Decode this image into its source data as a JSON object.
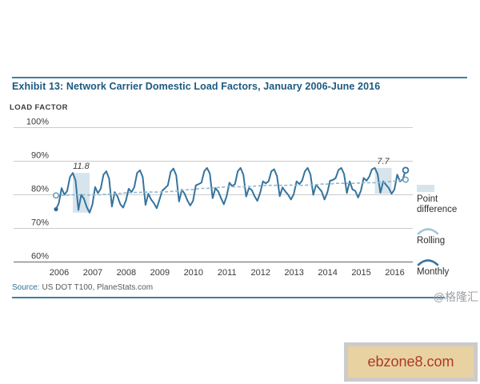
{
  "title": "Exhibit 13: Network Carrier Domestic Load Factors, January 2006-June 2016",
  "axis_title": "LOAD FACTOR",
  "source": {
    "label": "Source:",
    "text": "US DOT T100, PlaneStats.com"
  },
  "watermark": "@格隆汇",
  "footer_badge": "ebzone8.com",
  "legend": {
    "items": [
      {
        "label": "Point difference",
        "type": "swatch"
      },
      {
        "label": "Rolling",
        "type": "arc-light"
      },
      {
        "label": "Monthly",
        "type": "arc-dark"
      }
    ]
  },
  "colors": {
    "title_blue": "#1b5a80",
    "rule_blue": "#41809e",
    "monthly_line": "#35749e",
    "rolling_line": "#8fb8cf",
    "band_fill": "#d7e4ec",
    "gridline": "#cbcbcb",
    "axis_line": "#8a8a8a",
    "tick_text": "#3a3a3a",
    "annotation_text": "#3f3f3f",
    "badge_bg": "#e8d2a2",
    "badge_text": "#ad3a2a"
  },
  "chart_data": {
    "type": "line",
    "title": "Network Carrier Domestic Load Factors, January 2006-June 2016",
    "ylabel": "LOAD FACTOR",
    "ylim": [
      60,
      100
    ],
    "grid": true,
    "legend_position": "right",
    "ytick_values": [
      100,
      90,
      80,
      70,
      60
    ],
    "ytick_labels": [
      "100%",
      "90%",
      "80%",
      "70%",
      "60%"
    ],
    "x_tick_labels": [
      "2006",
      "2007",
      "2008",
      "2009",
      "2010",
      "2011",
      "2012",
      "2013",
      "2014",
      "2015",
      "2016"
    ],
    "x_start": "2006-01",
    "x_end": "2016-06",
    "series": [
      {
        "name": "Monthly",
        "values": [
          75.7,
          77.5,
          82.0,
          80.0,
          81.2,
          85.3,
          86.5,
          84.2,
          75.5,
          80.0,
          78.8,
          76.3,
          74.7,
          77.0,
          82.3,
          80.5,
          81.8,
          86.0,
          87.0,
          84.8,
          76.5,
          80.8,
          79.5,
          77.2,
          76.2,
          78.3,
          81.8,
          80.8,
          82.3,
          86.5,
          87.3,
          85.3,
          77.0,
          80.3,
          78.6,
          77.5,
          76.0,
          78.6,
          81.2,
          82.0,
          82.8,
          86.8,
          87.8,
          85.8,
          78.0,
          81.5,
          80.3,
          78.3,
          76.8,
          78.2,
          82.8,
          83.2,
          83.6,
          87.0,
          88.0,
          86.3,
          79.0,
          82.0,
          81.0,
          79.0,
          77.2,
          79.6,
          83.6,
          82.6,
          83.2,
          87.0,
          88.0,
          86.0,
          79.5,
          82.0,
          81.4,
          79.6,
          78.2,
          80.6,
          84.0,
          83.4,
          84.0,
          87.0,
          87.6,
          85.6,
          79.6,
          82.2,
          81.0,
          80.0,
          78.6,
          80.2,
          84.0,
          83.2,
          84.2,
          87.0,
          88.0,
          86.0,
          80.0,
          83.0,
          82.0,
          81.0,
          78.6,
          80.6,
          84.2,
          84.4,
          85.0,
          87.4,
          88.0,
          86.2,
          80.5,
          84.0,
          81.6,
          81.2,
          79.2,
          81.2,
          85.0,
          84.2,
          85.4,
          87.6,
          88.0,
          86.2,
          80.6,
          84.0,
          83.0,
          82.0,
          80.3,
          81.6,
          86.0,
          84.0,
          84.6,
          87.3
        ]
      },
      {
        "name": "Rolling",
        "values": [
          79.8,
          79.8,
          79.9,
          79.9,
          79.9,
          80.0,
          80.0,
          80.0,
          80.0,
          80.0,
          80.0,
          80.0,
          79.9,
          79.9,
          79.9,
          80.0,
          80.0,
          80.1,
          80.1,
          80.2,
          80.2,
          80.3,
          80.3,
          80.4,
          80.5,
          80.6,
          80.6,
          80.6,
          80.7,
          80.7,
          80.7,
          80.8,
          80.8,
          80.8,
          80.8,
          80.8,
          80.8,
          80.8,
          80.8,
          80.9,
          80.9,
          81.0,
          81.0,
          81.1,
          81.2,
          81.3,
          81.4,
          81.5,
          81.6,
          81.6,
          81.7,
          81.8,
          81.9,
          81.9,
          81.9,
          82.0,
          82.0,
          82.1,
          82.2,
          82.2,
          82.3,
          82.4,
          82.4,
          82.4,
          82.4,
          82.4,
          82.4,
          82.4,
          82.5,
          82.5,
          82.5,
          82.6,
          82.6,
          82.7,
          82.7,
          82.8,
          82.8,
          82.8,
          82.8,
          82.8,
          82.8,
          82.8,
          82.8,
          82.8,
          82.9,
          82.8,
          82.8,
          82.8,
          82.8,
          82.8,
          82.9,
          82.9,
          82.9,
          83.0,
          83.1,
          83.2,
          83.2,
          83.2,
          83.2,
          83.3,
          83.4,
          83.4,
          83.4,
          83.4,
          83.4,
          83.4,
          83.4,
          83.4,
          83.5,
          83.5,
          83.6,
          83.6,
          83.6,
          83.6,
          83.6,
          83.7,
          83.7,
          83.7,
          83.8,
          83.9,
          84.0,
          84.1,
          84.2,
          84.3,
          84.4,
          84.5
        ]
      }
    ],
    "annotations": [
      {
        "label": "11.8",
        "from_index": 6,
        "to_index": 12,
        "top": 86.5,
        "bottom": 74.7
      },
      {
        "label": "7.7",
        "from_index": 114,
        "to_index": 120,
        "top": 88.0,
        "bottom": 80.3
      }
    ]
  }
}
